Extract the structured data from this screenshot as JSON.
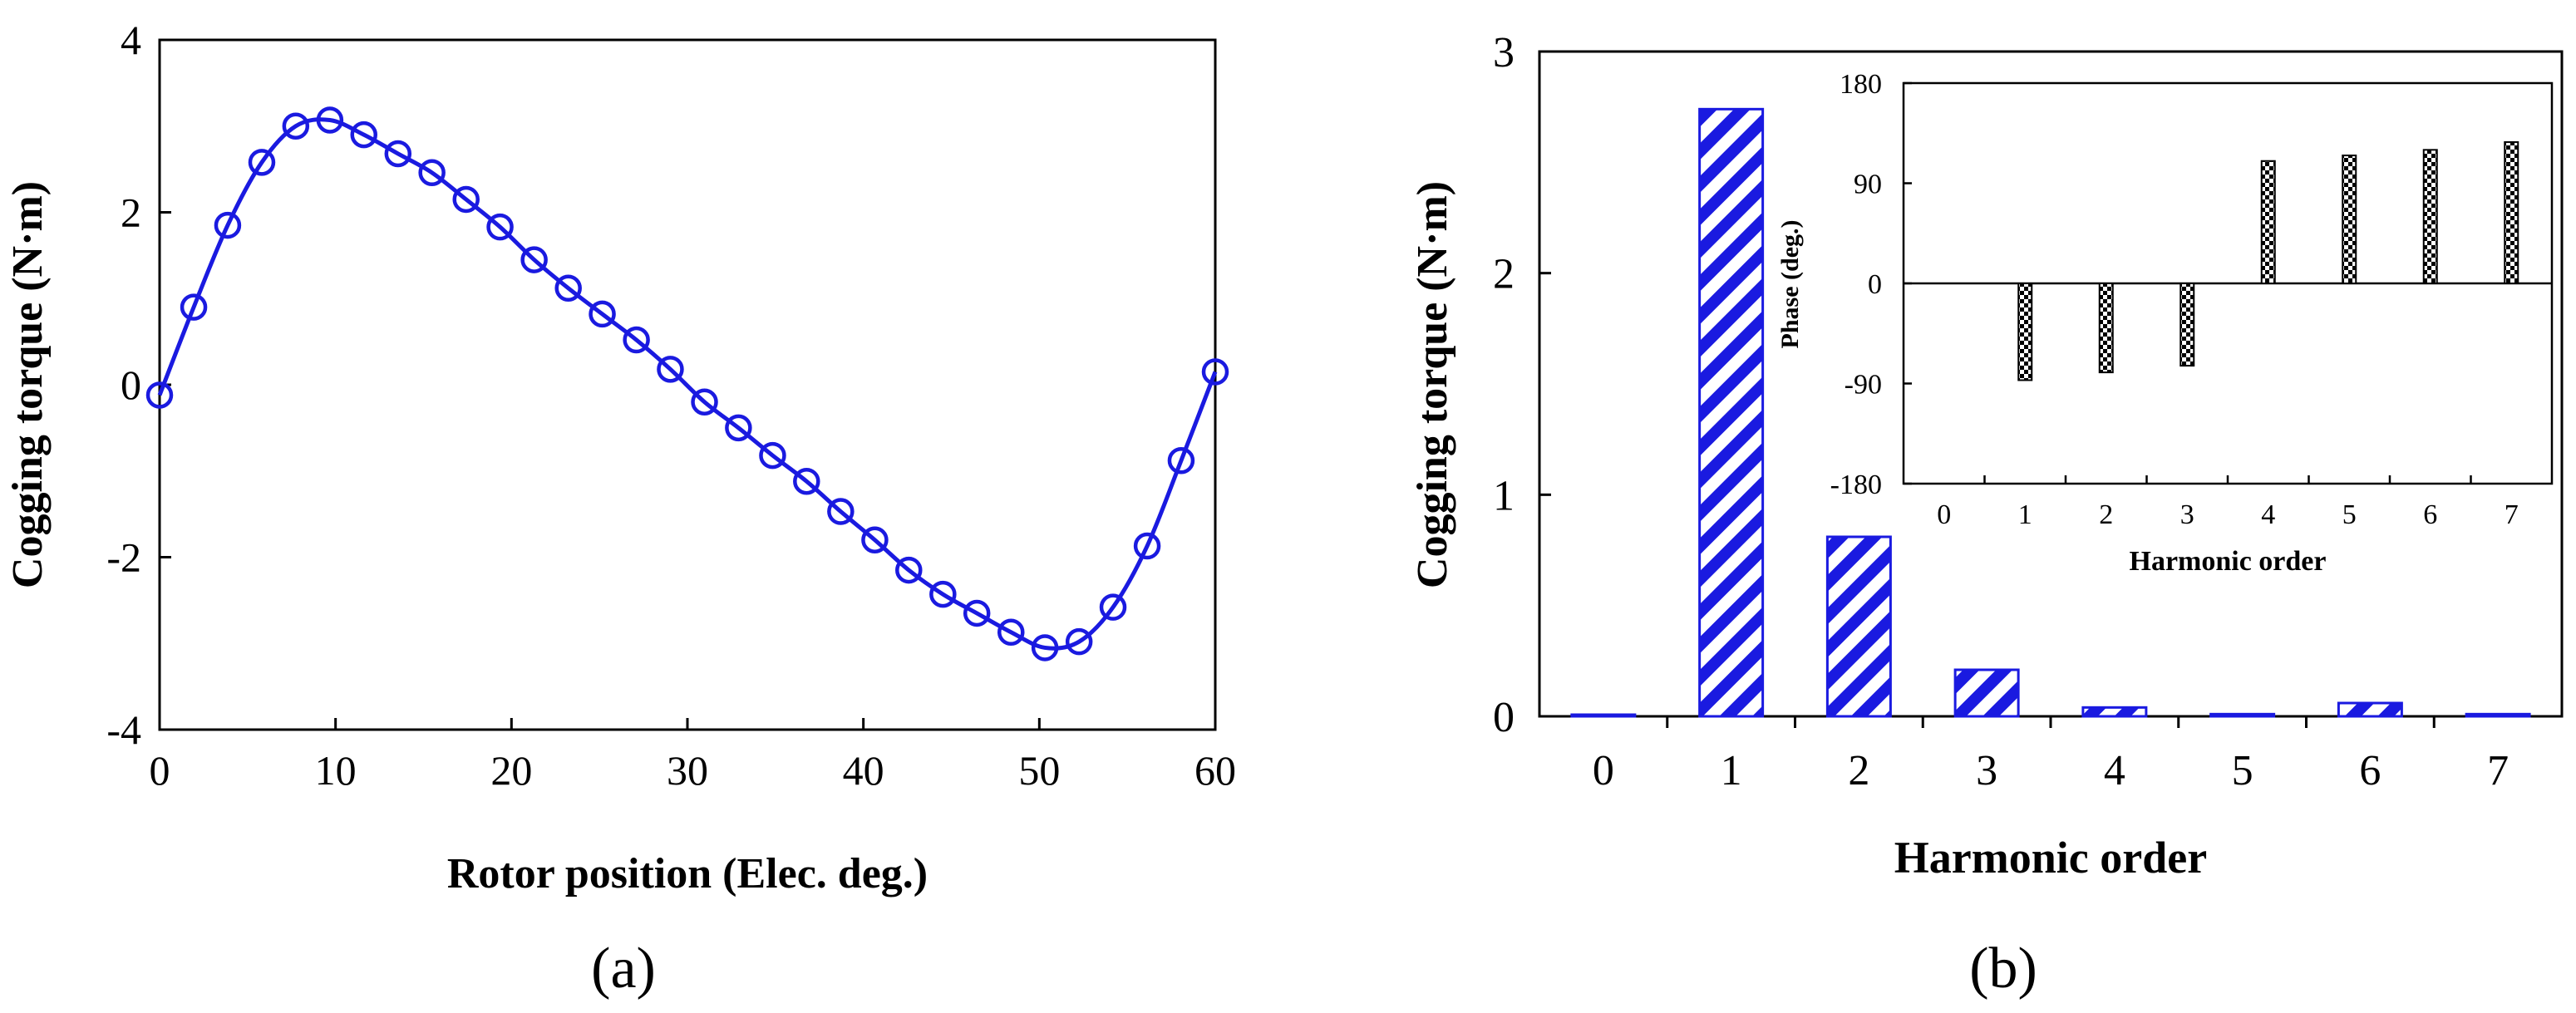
{
  "chart_data": [
    {
      "type": "line",
      "title": "",
      "xlabel": "Rotor position (Elec. deg.)",
      "ylabel": "Cogging torque (N·m)",
      "xlim": [
        0,
        60
      ],
      "ylim": [
        -4,
        4
      ],
      "xticks": [
        "0",
        "10",
        "20",
        "30",
        "40",
        "50",
        "60"
      ],
      "yticks": [
        "-4",
        "-2",
        "0",
        "2",
        "4"
      ],
      "grid": false,
      "panel_label": "(a)",
      "series": [
        {
          "name": "Cogging torque",
          "color": "#1a1ae0",
          "marker": "open-circle",
          "x": [
            0,
            1.94,
            3.87,
            5.81,
            7.74,
            9.68,
            11.61,
            13.55,
            15.48,
            17.42,
            19.35,
            21.29,
            23.23,
            25.16,
            27.1,
            29.03,
            30.97,
            32.9,
            34.84,
            36.77,
            38.71,
            40.65,
            42.58,
            44.52,
            46.45,
            48.39,
            50.32,
            52.26,
            54.19,
            56.13,
            58.06,
            60
          ],
          "y": [
            -0.12,
            0.9,
            1.85,
            2.58,
            3.0,
            3.07,
            2.9,
            2.68,
            2.46,
            2.15,
            1.83,
            1.45,
            1.12,
            0.82,
            0.52,
            0.18,
            -0.2,
            -0.5,
            -0.82,
            -1.12,
            -1.47,
            -1.8,
            -2.15,
            -2.43,
            -2.65,
            -2.87,
            -3.05,
            -2.98,
            -2.58,
            -1.87,
            -0.88,
            0.15
          ]
        }
      ]
    },
    {
      "type": "bar",
      "title": "",
      "xlabel": "Harmonic order",
      "ylabel": "Cogging torque (N·m)",
      "categories": [
        "0",
        "1",
        "2",
        "3",
        "4",
        "5",
        "6",
        "7"
      ],
      "values": [
        0.005,
        2.74,
        0.81,
        0.21,
        0.04,
        0.01,
        0.06,
        0.01
      ],
      "ylim": [
        0,
        3
      ],
      "yticks": [
        "0",
        "1",
        "2",
        "3"
      ],
      "grid": false,
      "panel_label": "(b)",
      "bar_color": "#1a1ae0",
      "bar_pattern": "diagonal-hatch"
    },
    {
      "type": "bar",
      "title": "",
      "xlabel": "Harmonic order",
      "ylabel": "Phase (deg.)",
      "categories": [
        "0",
        "1",
        "2",
        "3",
        "4",
        "5",
        "6",
        "7"
      ],
      "values": [
        0,
        -87,
        -80,
        -74,
        110,
        115,
        120,
        127
      ],
      "ylim": [
        -180,
        180
      ],
      "yticks": [
        "-180",
        "-90",
        "0",
        "90",
        "180"
      ],
      "grid": false,
      "placement": "inset top-right of panel (b)",
      "bar_color": "#000000",
      "bar_pattern": "checkerboard"
    }
  ]
}
